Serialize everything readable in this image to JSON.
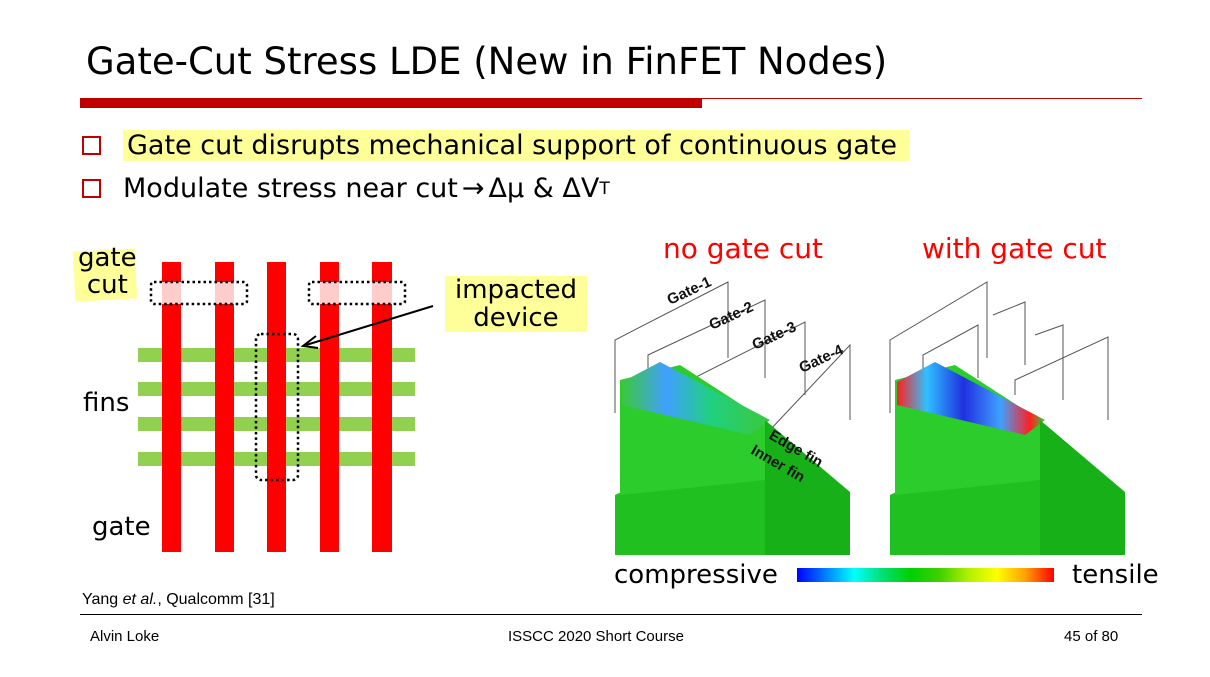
{
  "title": "Gate-Cut Stress LDE (New in FinFET Nodes)",
  "bullets": [
    {
      "text": "Gate cut disrupts mechanical support of continuous gate",
      "highlighted": true
    },
    {
      "text_prefix": "Modulate stress near cut ",
      "arrow": "→",
      "text_suffix": " Δμ & ΔV",
      "subscript": "T"
    }
  ],
  "layout_diagram": {
    "labels": {
      "gate_cut": "gate\ncut",
      "gate_cut_line1": "gate",
      "gate_cut_line2": "cut",
      "impacted_line1": "impacted",
      "impacted_line2": "device",
      "fins": "fins",
      "gate": "gate"
    },
    "colors": {
      "gate": "#ff0000",
      "fin": "#92d050",
      "highlight": "#ffff99",
      "cut": "#ffcccc"
    }
  },
  "simulation": {
    "no_cut_title": "no gate cut",
    "with_cut_title": "with gate cut",
    "gate_labels": [
      "Gate-1",
      "Gate-2",
      "Gate-3",
      "Gate-4"
    ],
    "edge_fin": "Edge fin",
    "inner_fin": "Inner fin",
    "scale_left": "compressive",
    "scale_right": "tensile"
  },
  "citation": {
    "author": "Yang ",
    "etal": "et al.",
    "rest": ", Qualcomm [31]"
  },
  "footer": {
    "left": "Alvin Loke",
    "center": "ISSCC 2020 Short Course",
    "right": "45 of 80"
  }
}
